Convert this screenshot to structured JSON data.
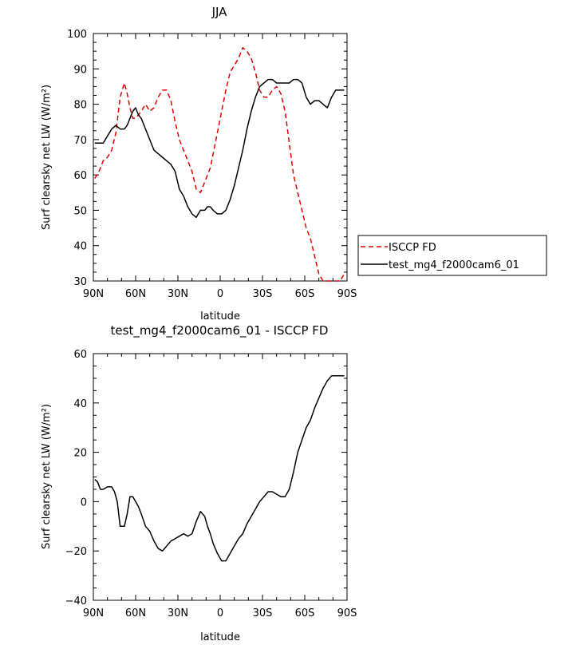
{
  "chart_data": [
    {
      "type": "line",
      "title": "JJA",
      "xlabel": "latitude",
      "ylabel": "Surf clearsky net LW (W/m²)",
      "xlim": [
        90,
        -90
      ],
      "ylim": [
        30,
        100
      ],
      "x_ticks": [
        90,
        60,
        30,
        0,
        -30,
        -60,
        -90
      ],
      "x_tick_labels": [
        "90N",
        "60N",
        "30N",
        "0",
        "30S",
        "60S",
        "90S"
      ],
      "y_ticks": [
        30,
        40,
        50,
        60,
        70,
        80,
        90,
        100
      ],
      "legend": "right",
      "series": [
        {
          "name": "ISCCP FD",
          "color": "#e00000",
          "dash": "dashed",
          "x": [
            89,
            86,
            83,
            80,
            77,
            74,
            71,
            68,
            66,
            64,
            62,
            60,
            58,
            56,
            53,
            50,
            47,
            44,
            41,
            38,
            35,
            32,
            29,
            26,
            23,
            20,
            17,
            14,
            11,
            9,
            7,
            5,
            2,
            -1,
            -4,
            -7,
            -10,
            -13,
            -16,
            -19,
            -22,
            -25,
            -28,
            -31,
            -34,
            -37,
            -40,
            -43,
            -46,
            -49,
            -52,
            -55,
            -58,
            -61,
            -64,
            -67,
            -70,
            -73,
            -76,
            -79,
            -82,
            -85,
            -88
          ],
          "values": [
            59,
            61,
            64,
            65,
            67,
            72,
            82,
            86,
            83,
            79,
            76,
            76,
            77,
            78,
            80,
            78,
            79,
            82,
            84,
            84,
            81,
            75,
            70,
            67,
            64,
            61,
            56,
            55,
            58,
            60,
            62,
            66,
            72,
            78,
            84,
            89,
            91,
            93,
            96,
            95,
            93,
            89,
            84,
            82,
            82,
            84,
            85,
            83,
            78,
            69,
            60,
            55,
            50,
            45,
            42,
            37,
            32,
            30,
            30,
            30,
            30,
            30,
            32
          ]
        },
        {
          "name": "test_mg4_f2000cam6_01",
          "color": "#000000",
          "dash": "solid",
          "x": [
            89,
            86,
            83,
            80,
            77,
            74,
            71,
            68,
            66,
            64,
            62,
            60,
            58,
            56,
            53,
            50,
            47,
            44,
            41,
            38,
            35,
            32,
            29,
            26,
            23,
            20,
            17,
            14,
            11,
            9,
            7,
            5,
            2,
            -1,
            -4,
            -7,
            -10,
            -13,
            -16,
            -19,
            -22,
            -25,
            -28,
            -31,
            -34,
            -37,
            -40,
            -43,
            -46,
            -49,
            -52,
            -55,
            -58,
            -61,
            -64,
            -67,
            -70,
            -73,
            -76,
            -79,
            -82,
            -85,
            -88
          ],
          "values": [
            69,
            69,
            69,
            71,
            73,
            74,
            73,
            73,
            74,
            76,
            78,
            79,
            77,
            76,
            73,
            70,
            67,
            66,
            65,
            64,
            63,
            61,
            56,
            54,
            51,
            49,
            48,
            50,
            50,
            51,
            51,
            50,
            49,
            49,
            50,
            53,
            57,
            62,
            67,
            73,
            78,
            82,
            85,
            86,
            87,
            87,
            86,
            86,
            86,
            86,
            87,
            87,
            86,
            82,
            80,
            81,
            81,
            80,
            79,
            82,
            84,
            84,
            84
          ]
        }
      ]
    },
    {
      "type": "line",
      "title": "test_mg4_f2000cam6_01 - ISCCP FD",
      "xlabel": "latitude",
      "ylabel": "Surf clearsky net LW (W/m²)",
      "xlim": [
        90,
        -90
      ],
      "ylim": [
        -40,
        60
      ],
      "x_ticks": [
        90,
        60,
        30,
        0,
        -30,
        -60,
        -90
      ],
      "x_tick_labels": [
        "90N",
        "60N",
        "30N",
        "0",
        "30S",
        "60S",
        "90S"
      ],
      "y_ticks": [
        -40,
        -20,
        0,
        20,
        40,
        60
      ],
      "series": [
        {
          "color": "#000000",
          "dash": "solid",
          "x": [
            89,
            87,
            85,
            83,
            80,
            77,
            75,
            73,
            71,
            68,
            66,
            64,
            62,
            60,
            58,
            56,
            53,
            50,
            47,
            44,
            41,
            38,
            35,
            32,
            29,
            26,
            23,
            20,
            17,
            14,
            11,
            9,
            7,
            5,
            2,
            -1,
            -4,
            -7,
            -10,
            -13,
            -16,
            -19,
            -22,
            -25,
            -28,
            -31,
            -34,
            -37,
            -40,
            -43,
            -46,
            -49,
            -52,
            -55,
            -58,
            -61,
            -64,
            -67,
            -70,
            -73,
            -76,
            -79,
            -82,
            -85,
            -88
          ],
          "values": [
            9,
            8,
            5,
            5,
            6,
            6,
            4,
            0,
            -10,
            -10,
            -5,
            2,
            2,
            0,
            -2,
            -5,
            -10,
            -12,
            -16,
            -19,
            -20,
            -18,
            -16,
            -15,
            -14,
            -13,
            -14,
            -13,
            -8,
            -4,
            -6,
            -10,
            -13,
            -17,
            -21,
            -24,
            -24,
            -21,
            -18,
            -15,
            -13,
            -9,
            -6,
            -3,
            0,
            2,
            4,
            4,
            3,
            2,
            2,
            5,
            12,
            20,
            25,
            30,
            33,
            38,
            42,
            46,
            49,
            51,
            51,
            51,
            51
          ]
        }
      ]
    }
  ]
}
